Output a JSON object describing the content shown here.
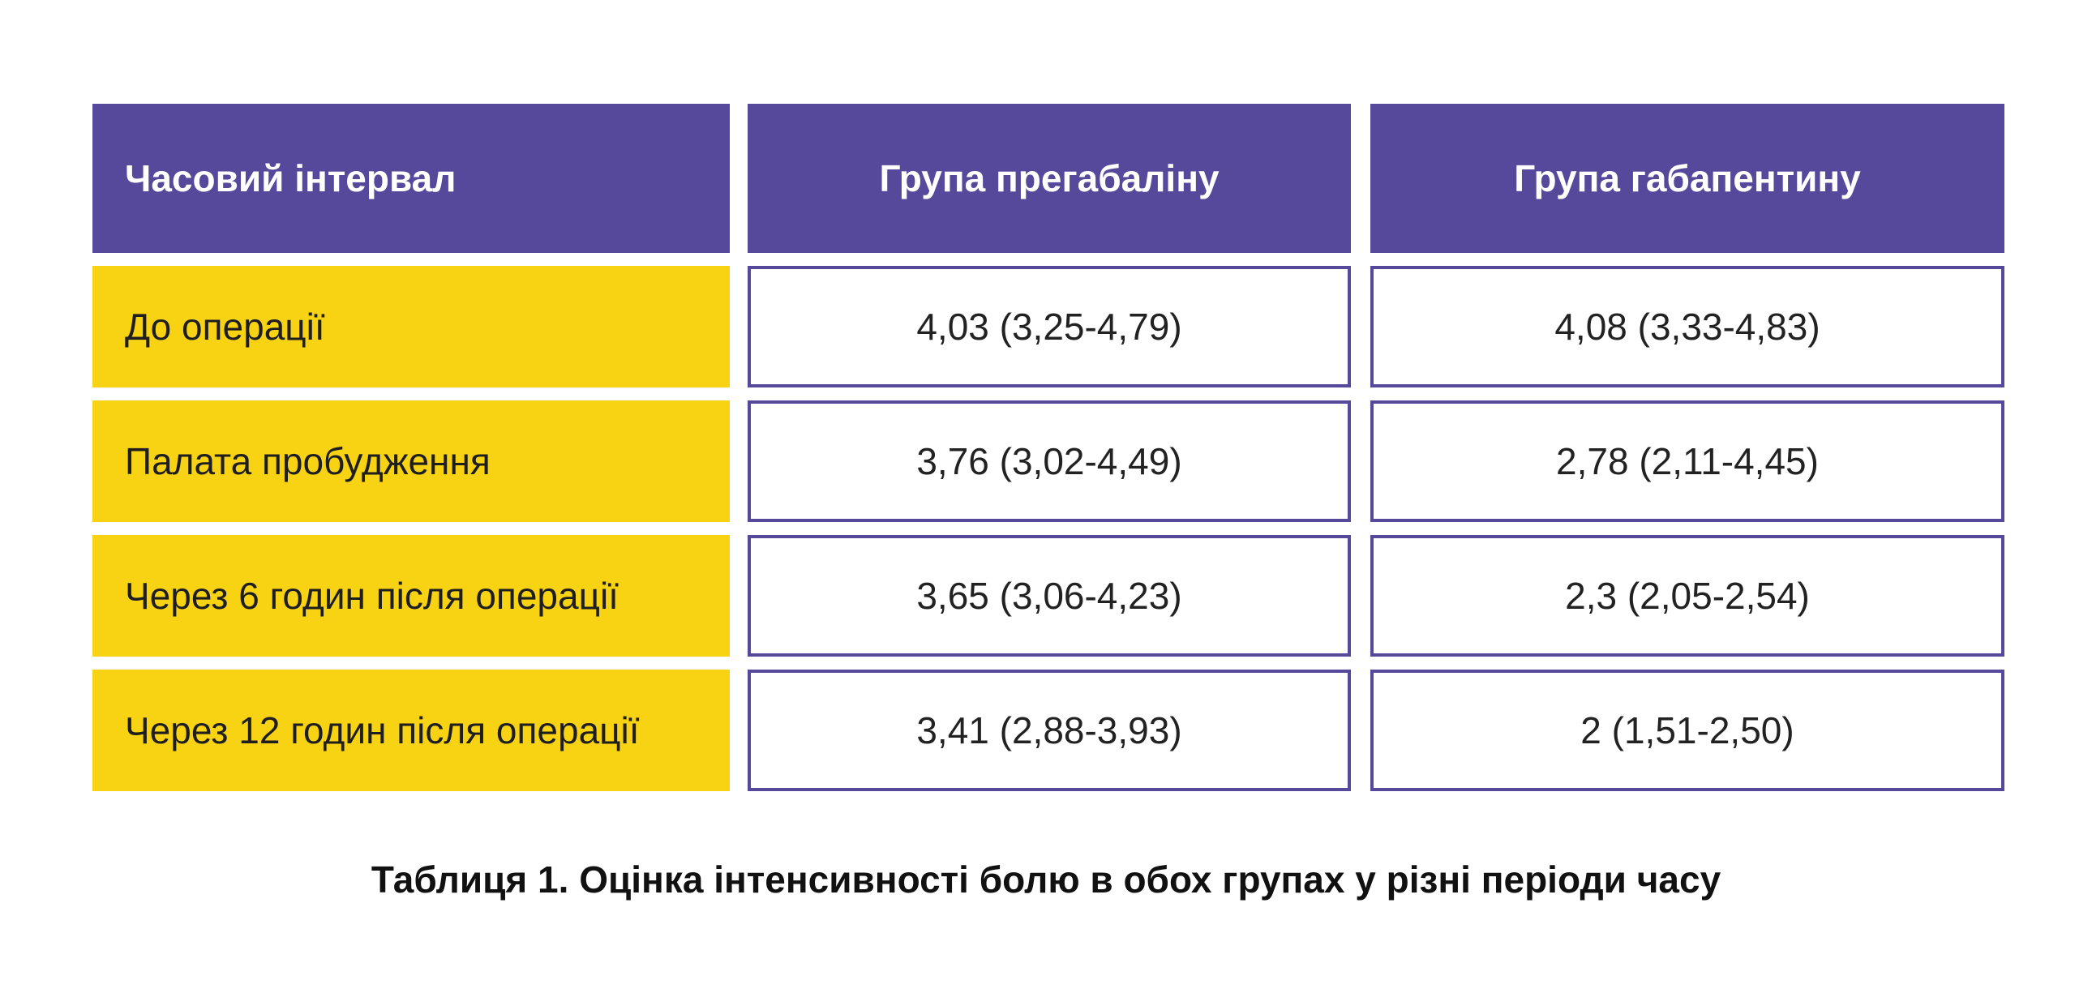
{
  "colors": {
    "header_bg": "#56489a",
    "row_label_bg": "#f8d314",
    "cell_border": "#56489a",
    "header_text": "#ffffff"
  },
  "table": {
    "headers": [
      "Часовий інтервал",
      "Група прегабаліну",
      "Група габапентину"
    ],
    "rows": [
      {
        "interval": "До операції",
        "pregabalin": "4,03 (3,25-4,79)",
        "gabapentin": "4,08 (3,33-4,83)"
      },
      {
        "interval": "Палата пробудження",
        "pregabalin": "3,76 (3,02-4,49)",
        "gabapentin": "2,78 (2,11-4,45)"
      },
      {
        "interval": "Через 6 годин після операції",
        "pregabalin": "3,65 (3,06-4,23)",
        "gabapentin": "2,3 (2,05-2,54)"
      },
      {
        "interval": "Через 12 годин після операції",
        "pregabalin": "3,41 (2,88-3,93)",
        "gabapentin": "2 (1,51-2,50)"
      }
    ]
  },
  "caption": "Таблиця 1. Оцінка інтенсивності болю в обох групах у різні періоди часу"
}
